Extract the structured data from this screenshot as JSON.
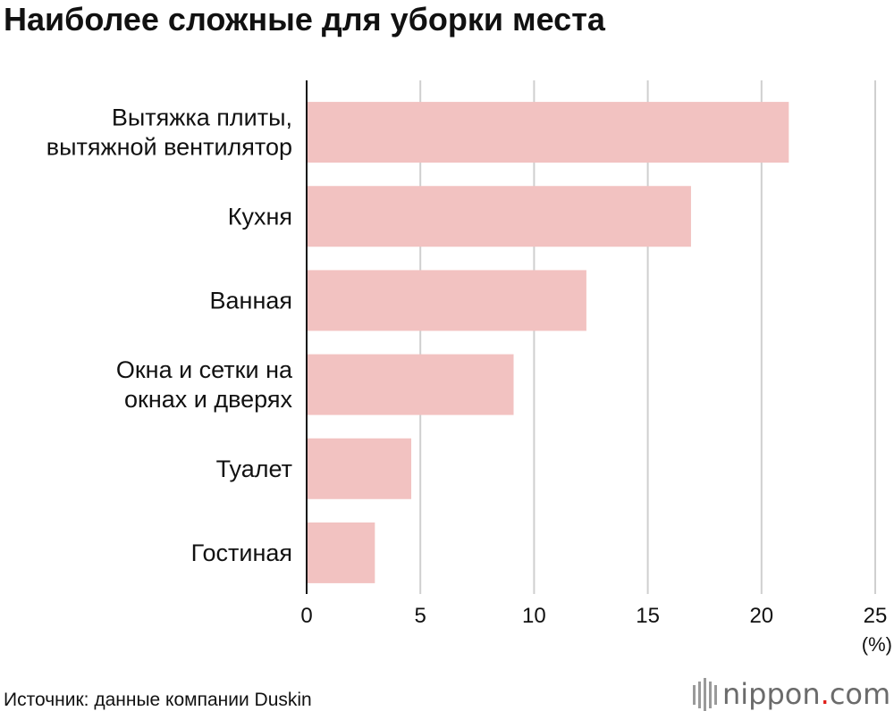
{
  "chart_data": {
    "type": "bar",
    "orientation": "horizontal",
    "title": "Наиболее сложные для уборки места",
    "categories": [
      [
        "Вытяжка плиты,",
        "вытяжной вентилятор"
      ],
      [
        "Кухня"
      ],
      [
        "Ванная"
      ],
      [
        "Окна и сетки на",
        "окнах и дверях"
      ],
      [
        "Туалет"
      ],
      [
        "Гостиная"
      ]
    ],
    "values": [
      21.2,
      16.9,
      12.3,
      9.1,
      4.6,
      3.0
    ],
    "xlim": [
      0,
      25
    ],
    "xticks": [
      "0",
      "5",
      "10",
      "15",
      "20",
      "25"
    ],
    "unit_label": "(%)",
    "grid": true,
    "bar_color": "#f2c2c1",
    "grid_color": "#cfcfcf",
    "axis_color": "#111111"
  },
  "source": "Источник: данные компании Duskin",
  "logo": {
    "brand": "nippon",
    "dot": ".",
    "suffix": "com",
    "dot_color": "#e0201a"
  }
}
